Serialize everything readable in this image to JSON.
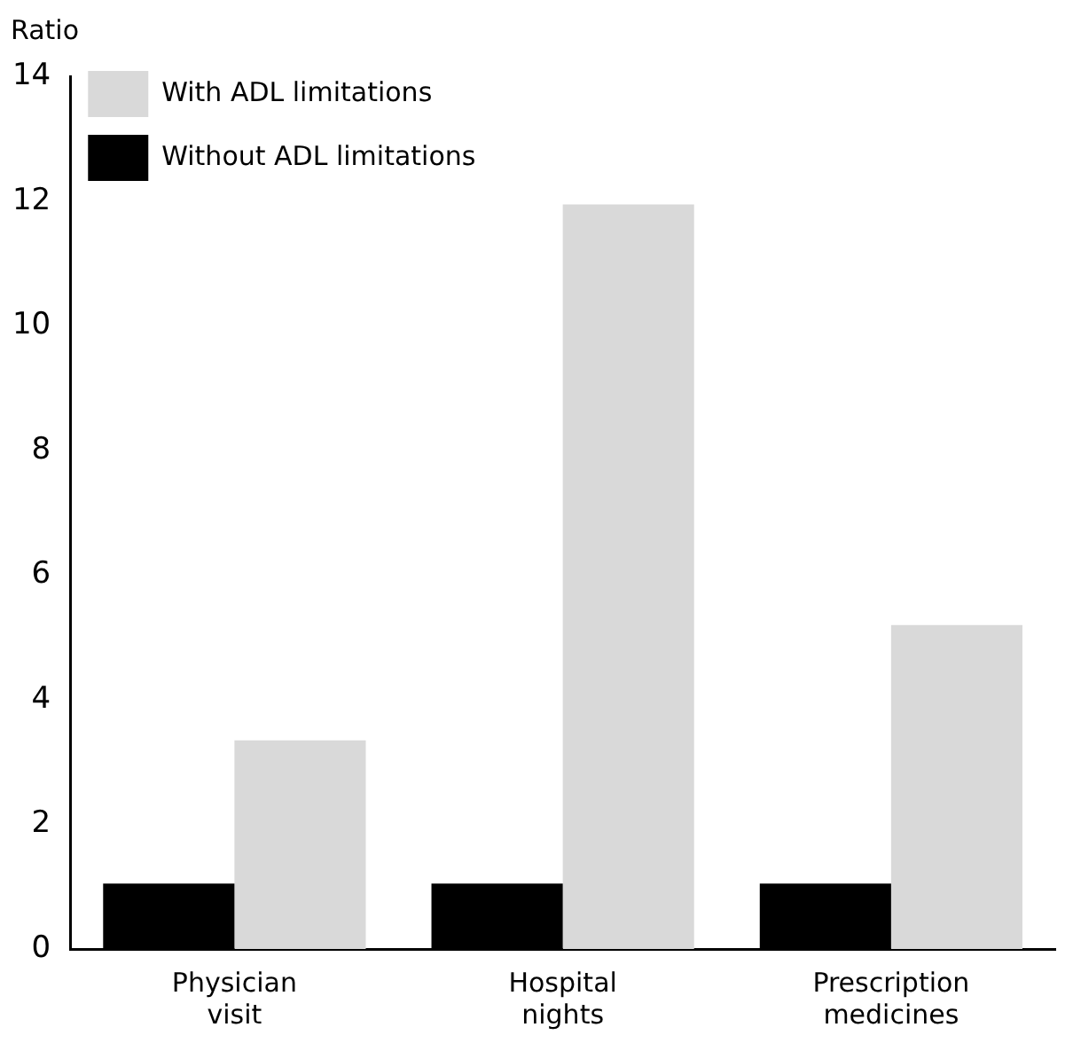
{
  "chart_data": {
    "type": "bar",
    "ylabel": "Ratio",
    "categories": [
      "Physician visit",
      "Hospital nights",
      "Prescription medicines"
    ],
    "series": [
      {
        "name": "Without ADL limitations",
        "color": "#000000",
        "values": [
          1.05,
          1.05,
          1.05
        ]
      },
      {
        "name": "With ADL limitations",
        "color": "#d9d9d9",
        "values": [
          3.35,
          11.95,
          5.2
        ]
      }
    ],
    "ylim": [
      0,
      14
    ],
    "yticks": [
      0,
      2,
      4,
      6,
      8,
      10,
      12,
      14
    ],
    "grid": false,
    "legend": "top left"
  }
}
